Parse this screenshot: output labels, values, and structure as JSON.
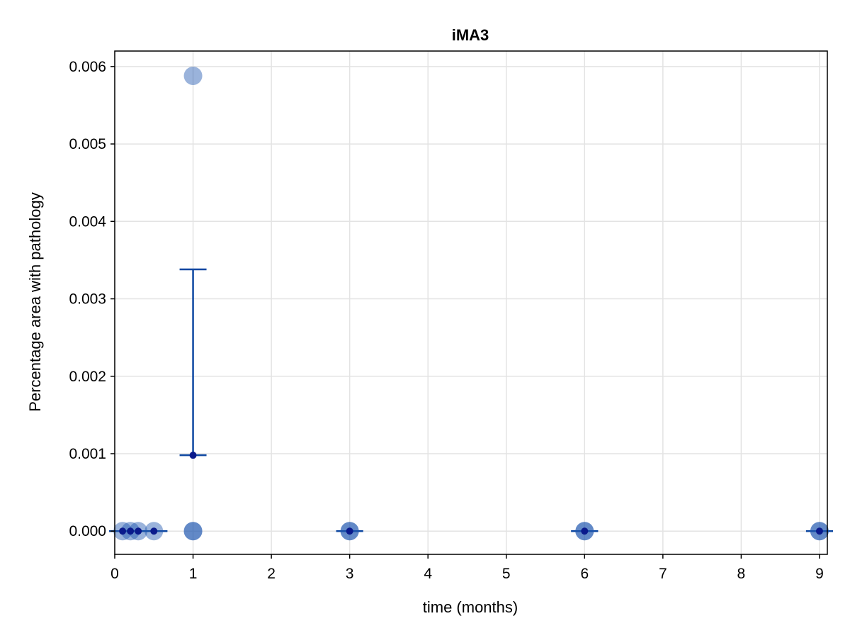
{
  "chart_data": {
    "type": "scatter",
    "title": "iMA3",
    "xlabel": "time (months)",
    "ylabel": "Percentage area with pathology",
    "xlim": [
      0,
      9.1
    ],
    "ylim": [
      -0.0003,
      0.0062
    ],
    "x_ticks": [
      0,
      1,
      2,
      3,
      4,
      5,
      6,
      7,
      8,
      9
    ],
    "x_tick_labels": [
      "0",
      "1",
      "2",
      "3",
      "4",
      "5",
      "6",
      "7",
      "8",
      "9"
    ],
    "y_ticks": [
      0.0,
      0.001,
      0.002,
      0.003,
      0.004,
      0.005,
      0.006
    ],
    "y_tick_labels": [
      "0.000",
      "0.001",
      "0.002",
      "0.003",
      "0.004",
      "0.005",
      "0.006"
    ],
    "grid": true,
    "legend": "none",
    "series": [
      {
        "kind": "individual points",
        "points": [
          {
            "x": 0.1,
            "y": 0.0
          },
          {
            "x": 0.2,
            "y": 0.0
          },
          {
            "x": 0.3,
            "y": 0.0
          },
          {
            "x": 0.5,
            "y": 0.0
          },
          {
            "x": 1,
            "y": 0.0
          },
          {
            "x": 1,
            "y": 0.0
          },
          {
            "x": 1,
            "y": 0.00588
          },
          {
            "x": 3,
            "y": 0.0
          },
          {
            "x": 3,
            "y": 0.0
          },
          {
            "x": 6,
            "y": 0.0
          },
          {
            "x": 6,
            "y": 0.0
          },
          {
            "x": 9,
            "y": 0.0
          },
          {
            "x": 9,
            "y": 0.0
          }
        ]
      },
      {
        "kind": "mean with error bars",
        "points": [
          {
            "x": 0.1,
            "y": 0.0,
            "lower": 0.0,
            "upper": 0.0
          },
          {
            "x": 0.2,
            "y": 0.0,
            "lower": 0.0,
            "upper": 0.0
          },
          {
            "x": 0.3,
            "y": 0.0,
            "lower": 0.0,
            "upper": 0.0
          },
          {
            "x": 0.5,
            "y": 0.0,
            "lower": 0.0,
            "upper": 0.0
          },
          {
            "x": 1,
            "y": 0.00098,
            "lower": 0.00098,
            "upper": 0.00338
          },
          {
            "x": 3,
            "y": 0.0,
            "lower": 0.0,
            "upper": 0.0
          },
          {
            "x": 6,
            "y": 0.0,
            "lower": 0.0,
            "upper": 0.0
          },
          {
            "x": 9,
            "y": 0.0,
            "lower": 0.0,
            "upper": 0.0
          }
        ]
      }
    ],
    "colors": {
      "points": "#1f56b0",
      "error_bars": "#0d47a1",
      "mean_marker": "#0a1a8c",
      "grid": "#e3e3e3",
      "frame": "#000000"
    }
  }
}
